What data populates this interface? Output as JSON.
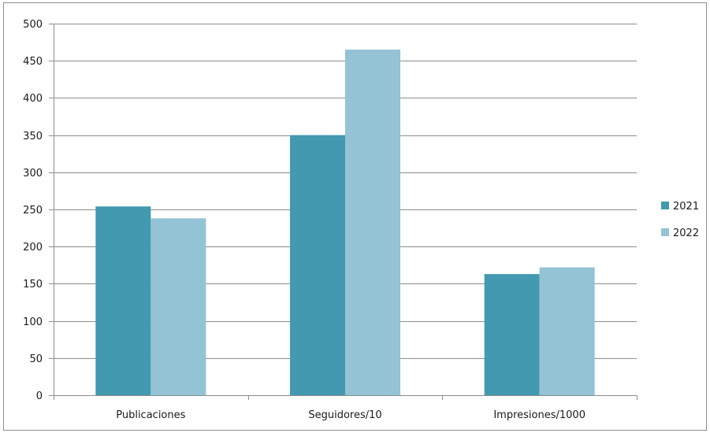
{
  "chart_data": {
    "type": "bar",
    "categories": [
      "Publicaciones",
      "Seguidores/10",
      "Impresiones/1000"
    ],
    "series": [
      {
        "name": "2021",
        "values": [
          254,
          350,
          163
        ]
      },
      {
        "name": "2022",
        "values": [
          238,
          465,
          172
        ]
      }
    ],
    "title": "",
    "xlabel": "",
    "ylabel": "",
    "ylim": [
      0,
      500
    ],
    "yticks": [
      0,
      50,
      100,
      150,
      200,
      250,
      300,
      350,
      400,
      450,
      500
    ],
    "grid": true,
    "legend_position": "right",
    "colors": {
      "2021": "#4299b0",
      "2022": "#93c3d5",
      "grid": "#8c8c8c",
      "axis": "#8c8c8c"
    }
  }
}
